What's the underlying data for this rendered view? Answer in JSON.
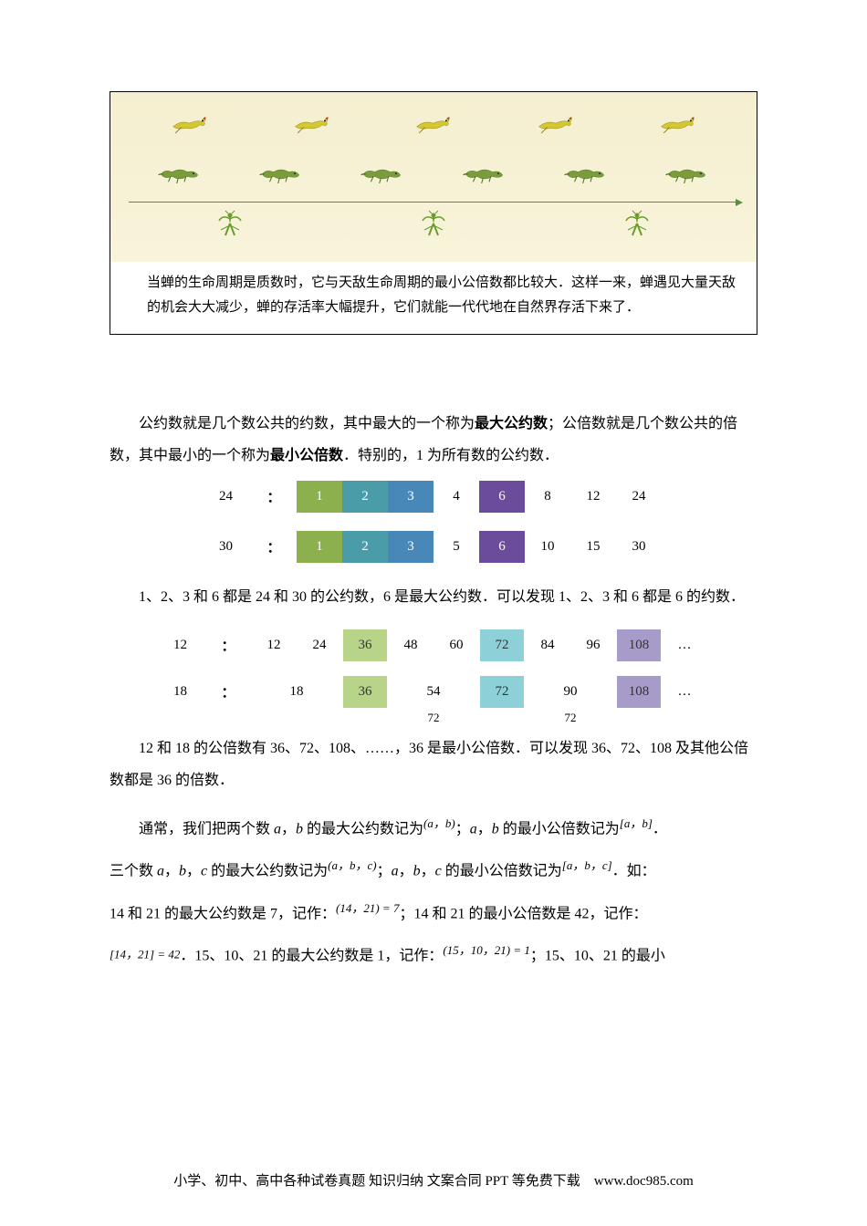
{
  "illustration": {
    "caption_text": "当蝉的生命周期是质数时，它与天敌生命周期的最小公倍数都比较大．这样一来，蝉遇见大量天敌的机会大大减少，蝉的存活率大幅提升，它们就能一代代地在自然界存活下来了．",
    "bird_count": 5,
    "lizard_count": 6,
    "mantis_count": 3
  },
  "intro_paragraph": {
    "part1": "公约数就是几个数公共的约数，其中最大的一个称为",
    "bold1": "最大公约数",
    "part2": "；公倍数就是几个数公共的倍数，其中最小的一个称为",
    "bold2": "最小公倍数",
    "part3": "．特别的，1 为所有数的公约数．"
  },
  "divisor_table": {
    "row1": {
      "label": "24",
      "colon": "：",
      "cells": [
        {
          "val": "1",
          "color": "color-green"
        },
        {
          "val": "2",
          "color": "color-teal"
        },
        {
          "val": "3",
          "color": "color-blue"
        },
        {
          "val": "4",
          "color": ""
        },
        {
          "val": "6",
          "color": "color-purple"
        },
        {
          "val": "8",
          "color": ""
        },
        {
          "val": "12",
          "color": ""
        },
        {
          "val": "24",
          "color": ""
        }
      ]
    },
    "row2": {
      "label": "30",
      "colon": "：",
      "cells": [
        {
          "val": "1",
          "color": "color-green"
        },
        {
          "val": "2",
          "color": "color-teal"
        },
        {
          "val": "3",
          "color": "color-blue"
        },
        {
          "val": "5",
          "color": ""
        },
        {
          "val": "6",
          "color": "color-purple"
        },
        {
          "val": "10",
          "color": ""
        },
        {
          "val": "15",
          "color": ""
        },
        {
          "val": "30",
          "color": ""
        }
      ]
    }
  },
  "divisor_text": "1、2、3 和 6 都是 24 和 30 的公约数，6 是最大公约数．可以发现 1、2、3 和 6 都是 6 的约数．",
  "multiple_table": {
    "row1": {
      "label": "12",
      "colon": "：",
      "cells": [
        {
          "val": "12",
          "color": ""
        },
        {
          "val": "24",
          "color": ""
        },
        {
          "val": "36",
          "color": "color-lightgreen"
        },
        {
          "val": "48",
          "color": ""
        },
        {
          "val": "60",
          "color": ""
        },
        {
          "val": "72",
          "color": "color-lightcyan"
        },
        {
          "val": "84",
          "color": ""
        },
        {
          "val": "96",
          "color": ""
        },
        {
          "val": "108",
          "color": "color-lightpurple"
        }
      ],
      "ellipsis": "…"
    },
    "row2": {
      "label": "18",
      "colon": "：",
      "cells": [
        {
          "val": "18",
          "color": "",
          "span": 2
        },
        {
          "val": "36",
          "color": "color-lightgreen",
          "span": 1
        },
        {
          "val": "54",
          "color": "",
          "span": 2
        },
        {
          "val": "72",
          "color": "color-lightcyan",
          "span": 1
        },
        {
          "val": "90",
          "color": "",
          "span": 2
        },
        {
          "val": "108",
          "color": "color-lightpurple",
          "span": 1
        }
      ],
      "ellipsis": "…"
    },
    "sub": {
      "val1": "72",
      "val2": "72"
    }
  },
  "multiple_text": "12 和 18 的公倍数有 36、72、108、……，36 是最小公倍数．可以发现 36、72、108 及其他公倍数都是 36 的倍数．",
  "notation_paragraph": {
    "p1_a": "通常，我们把两个数 ",
    "var_a": "a",
    "p1_b": "，",
    "var_b": "b",
    "p1_c": " 的最大公约数记为",
    "expr1": "(a，b)",
    "p1_d": "；",
    "p1_e": " 的最小公倍数记为",
    "expr2": "[a，b]",
    "p1_f": "．",
    "p2_a": "三个数 ",
    "var_c": "c",
    "p2_b": " 的最大公约数记为",
    "expr3": "(a，b，c)",
    "p2_c": "；",
    "p2_d": " 的最小公倍数记为",
    "expr4": "[a，b，c]",
    "p2_e": "．如：",
    "p3_a": "14 和 21 的最大公约数是 7，记作：",
    "expr5": "(14，21) = 7",
    "p3_b": "；14 和 21 的最小公倍数是 42，记作：",
    "expr6": "[14，21] = 42",
    "p3_c": "．15、10、21 的最大公约数是 1，记作：",
    "expr7": "(15，10，21) = 1",
    "p3_d": "；15、10、21 的最小"
  },
  "footer_text": "小学、初中、高中各种试卷真题 知识归纳 文案合同 PPT 等免费下载　www.doc985.com",
  "colors": {
    "green": "#8cb04e",
    "teal": "#4a9ca8",
    "blue": "#4888b8",
    "purple": "#6b4c9a",
    "lightgreen": "#b8d488",
    "lightcyan": "#8dd0d8",
    "lightpurple": "#a79bc9",
    "illustration_bg": "#f5efd0"
  }
}
